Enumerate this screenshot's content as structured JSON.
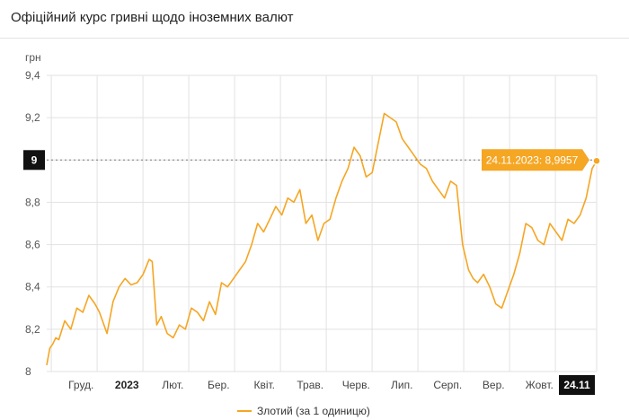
{
  "header": {
    "title": "Офіційний курс гривні щодо іноземних валют"
  },
  "chart_data": {
    "type": "line",
    "ylabel": "грн",
    "ylim": [
      8.0,
      9.4
    ],
    "yticks": [
      "8",
      "8,2",
      "8,4",
      "8,6",
      "8,8",
      "9",
      "9,2",
      "9,4"
    ],
    "xticks": [
      "Груд.",
      "2023",
      "Лют.",
      "Бер.",
      "Квіт.",
      "Трав.",
      "Черв.",
      "Лип.",
      "Серп.",
      "Вер.",
      "Жовт."
    ],
    "x_range": [
      "2022-11-24",
      "2023-11-24"
    ],
    "x_end_label": "24.11",
    "y_marker_label": "9",
    "tooltip": "24.11.2023: 8,9957",
    "series": [
      {
        "name": "Злотий (за 1 одиницю)",
        "color": "#f5a623",
        "x": [
          "2022-11-24",
          "2022-11-26",
          "2022-11-28",
          "2022-11-30",
          "2022-12-02",
          "2022-12-06",
          "2022-12-10",
          "2022-12-14",
          "2022-12-18",
          "2022-12-22",
          "2022-12-26",
          "2022-12-29",
          "2023-01-03",
          "2023-01-07",
          "2023-01-11",
          "2023-01-15",
          "2023-01-19",
          "2023-01-23",
          "2023-01-27",
          "2023-01-31",
          "2023-02-02",
          "2023-02-05",
          "2023-02-08",
          "2023-02-12",
          "2023-02-16",
          "2023-02-20",
          "2023-02-24",
          "2023-02-28",
          "2023-03-04",
          "2023-03-08",
          "2023-03-12",
          "2023-03-16",
          "2023-03-20",
          "2023-03-24",
          "2023-03-28",
          "2023-04-01",
          "2023-04-05",
          "2023-04-09",
          "2023-04-13",
          "2023-04-17",
          "2023-04-21",
          "2023-04-25",
          "2023-04-29",
          "2023-05-03",
          "2023-05-07",
          "2023-05-11",
          "2023-05-15",
          "2023-05-19",
          "2023-05-23",
          "2023-05-27",
          "2023-05-31",
          "2023-06-04",
          "2023-06-08",
          "2023-06-12",
          "2023-06-16",
          "2023-06-20",
          "2023-06-24",
          "2023-06-28",
          "2023-07-02",
          "2023-07-06",
          "2023-07-10",
          "2023-07-14",
          "2023-07-18",
          "2023-07-22",
          "2023-07-26",
          "2023-07-30",
          "2023-08-03",
          "2023-08-07",
          "2023-08-11",
          "2023-08-15",
          "2023-08-19",
          "2023-08-23",
          "2023-08-27",
          "2023-08-31",
          "2023-09-03",
          "2023-09-06",
          "2023-09-10",
          "2023-09-14",
          "2023-09-18",
          "2023-09-22",
          "2023-09-26",
          "2023-09-30",
          "2023-10-04",
          "2023-10-08",
          "2023-10-12",
          "2023-10-16",
          "2023-10-20",
          "2023-10-24",
          "2023-10-28",
          "2023-11-01",
          "2023-11-05",
          "2023-11-09",
          "2023-11-13",
          "2023-11-17",
          "2023-11-21",
          "2023-11-24"
        ],
        "values": [
          8.03,
          8.11,
          8.13,
          8.16,
          8.15,
          8.24,
          8.2,
          8.3,
          8.28,
          8.36,
          8.32,
          8.28,
          8.18,
          8.33,
          8.4,
          8.44,
          8.41,
          8.42,
          8.46,
          8.53,
          8.52,
          8.22,
          8.26,
          8.18,
          8.16,
          8.22,
          8.2,
          8.3,
          8.28,
          8.24,
          8.33,
          8.27,
          8.42,
          8.4,
          8.44,
          8.48,
          8.52,
          8.6,
          8.7,
          8.66,
          8.72,
          8.78,
          8.74,
          8.82,
          8.8,
          8.86,
          8.7,
          8.74,
          8.62,
          8.7,
          8.72,
          8.82,
          8.9,
          8.96,
          9.06,
          9.02,
          8.92,
          8.94,
          9.08,
          9.22,
          9.2,
          9.18,
          9.1,
          9.06,
          9.02,
          8.98,
          8.96,
          8.9,
          8.86,
          8.82,
          8.9,
          8.88,
          8.6,
          8.48,
          8.44,
          8.42,
          8.46,
          8.4,
          8.32,
          8.3,
          8.38,
          8.46,
          8.56,
          8.7,
          8.68,
          8.62,
          8.6,
          8.7,
          8.66,
          8.62,
          8.72,
          8.7,
          8.74,
          8.82,
          8.96,
          8.9957
        ]
      }
    ],
    "legend_position": "bottom-center",
    "grid": true
  }
}
